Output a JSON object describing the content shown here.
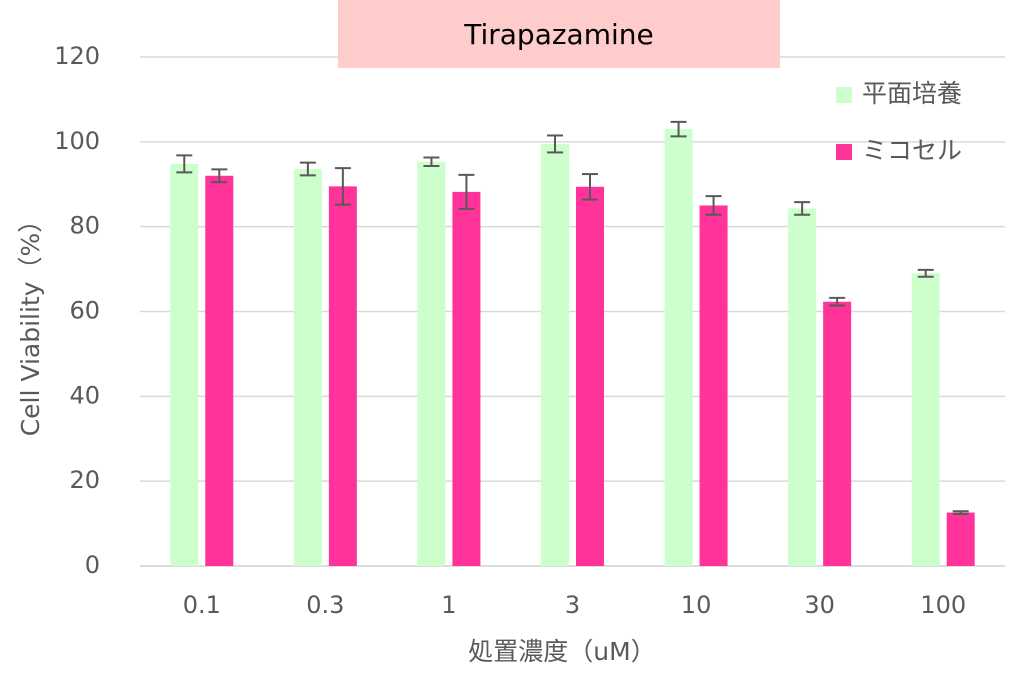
{
  "chart_data": {
    "type": "bar",
    "title": "Tirapazamine",
    "xlabel": "処置濃度（uM）",
    "ylabel": "Cell Viability（%）",
    "categories": [
      "0.1",
      "0.3",
      "1",
      "3",
      "10",
      "30",
      "100"
    ],
    "ylim": [
      0,
      120
    ],
    "yticks": [
      0,
      20,
      40,
      60,
      80,
      100,
      120
    ],
    "grid": true,
    "legend_position": "top-right",
    "series": [
      {
        "name": "平面培養",
        "color": "#CCFFCC",
        "values": [
          94.8,
          93.6,
          95.3,
          99.5,
          103.0,
          84.3,
          69.0
        ],
        "errors": [
          2.0,
          1.5,
          1.0,
          2.0,
          1.7,
          1.5,
          0.8
        ]
      },
      {
        "name": "ミコセル",
        "color": "#FF3399",
        "values": [
          92.0,
          89.5,
          88.2,
          89.4,
          85.0,
          62.3,
          12.6
        ],
        "errors": [
          1.5,
          4.3,
          4.0,
          3.0,
          2.2,
          0.9,
          0.3
        ]
      }
    ],
    "title_box_color": "#FFCCCC",
    "error_bar_color": "#595959"
  }
}
